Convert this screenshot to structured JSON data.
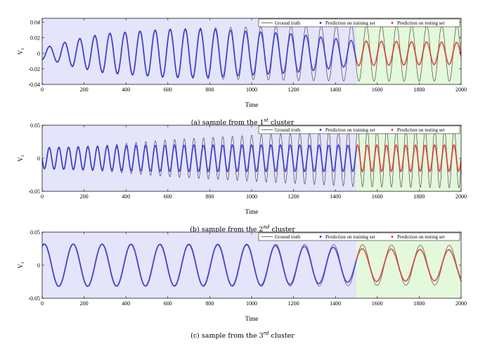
{
  "chart_data": [
    {
      "type": "line",
      "caption": "(a) sample from the 1",
      "caption_sup": "st",
      "caption_end": " cluster",
      "xlabel": "Time",
      "ylabel": "V",
      "ylabel_sub": "1",
      "xlim": [
        0,
        2000
      ],
      "ylim": [
        -0.04,
        0.045
      ],
      "xticks": [
        "0",
        "200",
        "400",
        "600",
        "800",
        "1000",
        "1200",
        "1400",
        "1600",
        "1800",
        "2000"
      ],
      "yticks": [
        "-0.04",
        "-0.02",
        "0",
        "0.02",
        "0.04"
      ],
      "ytick_values": [
        -0.04,
        -0.02,
        0,
        0.02,
        0.04
      ],
      "train_region": [
        0,
        1500
      ],
      "test_region": [
        1500,
        2000
      ],
      "legend": [
        "Ground truth",
        "Prediction on training set",
        "Prediction on testing set"
      ],
      "legend_position": "top-right",
      "colors": {
        "ground_truth": "#333333",
        "train": "#1f1fd6",
        "test": "#e02020",
        "train_bg": "#e4e4fa",
        "test_bg": "#e4f8dc"
      },
      "signal": {
        "period": 72,
        "phase_deg": -90,
        "gt_amplitude": [
          [
            0,
            0.008
          ],
          [
            40,
            0.009
          ],
          [
            150,
            0.018
          ],
          [
            300,
            0.026
          ],
          [
            600,
            0.031
          ],
          [
            800,
            0.033
          ],
          [
            1000,
            0.034
          ],
          [
            1200,
            0.035
          ],
          [
            1500,
            0.036
          ],
          [
            2000,
            0.036
          ]
        ],
        "pred_amplitude": [
          [
            0,
            0.008
          ],
          [
            40,
            0.009
          ],
          [
            150,
            0.017
          ],
          [
            300,
            0.025
          ],
          [
            600,
            0.031
          ],
          [
            800,
            0.031
          ],
          [
            1000,
            0.028
          ],
          [
            1200,
            0.025
          ],
          [
            1500,
            0.016
          ],
          [
            2000,
            0.014
          ]
        ]
      }
    },
    {
      "type": "line",
      "caption": "(b) sample from the 2",
      "caption_sup": "nd",
      "caption_end": " cluster",
      "xlabel": "Time",
      "ylabel": "V",
      "ylabel_sub": "1",
      "xlim": [
        0,
        2000
      ],
      "ylim": [
        -0.05,
        0.05
      ],
      "xticks": [
        "0",
        "200",
        "400",
        "600",
        "800",
        "1000",
        "1200",
        "1400",
        "1600",
        "1800",
        "2000"
      ],
      "yticks": [
        "-0.05",
        "0",
        "0.05"
      ],
      "ytick_values": [
        -0.05,
        0,
        0.05
      ],
      "train_region": [
        0,
        1500
      ],
      "test_region": [
        1500,
        2000
      ],
      "legend": [
        "Ground truth",
        "Prediction on training set",
        "Prediction on testing set"
      ],
      "legend_position": "top-right",
      "colors": {
        "ground_truth": "#333333",
        "train": "#1f1fd6",
        "test": "#e02020",
        "train_bg": "#e4e4fa",
        "test_bg": "#e4f8dc"
      },
      "signal": {
        "period": 46,
        "phase_deg": 180,
        "gt_amplitude": [
          [
            0,
            0.015
          ],
          [
            300,
            0.02
          ],
          [
            600,
            0.028
          ],
          [
            1000,
            0.035
          ],
          [
            1500,
            0.043
          ],
          [
            2000,
            0.045
          ]
        ],
        "pred_amplitude": [
          [
            0,
            0.016
          ],
          [
            300,
            0.018
          ],
          [
            600,
            0.02
          ],
          [
            1000,
            0.02
          ],
          [
            1500,
            0.02
          ],
          [
            2000,
            0.02
          ]
        ]
      }
    },
    {
      "type": "line",
      "caption": "(c) sample from the 3",
      "caption_sup": "rd",
      "caption_end": " cluster",
      "xlabel": "Time",
      "ylabel": "V",
      "ylabel_sub": "1",
      "xlim": [
        0,
        2000
      ],
      "ylim": [
        -0.05,
        0.05
      ],
      "xticks": [
        "0",
        "200",
        "400",
        "600",
        "800",
        "1000",
        "1200",
        "1400",
        "1600",
        "1800",
        "2000"
      ],
      "yticks": [
        "-0.05",
        "0",
        "0.05"
      ],
      "ytick_values": [
        -0.05,
        0,
        0.05
      ],
      "train_region": [
        0,
        1500
      ],
      "test_region": [
        1500,
        2000
      ],
      "legend": [
        "Ground truth",
        "Prediction on training set",
        "Prediction on testing set"
      ],
      "legend_position": "top-right",
      "colors": {
        "ground_truth": "#333333",
        "train": "#1f1fd6",
        "test": "#e02020",
        "train_bg": "#e4e4fa",
        "test_bg": "#e4f8dc"
      },
      "signal": {
        "period": 138,
        "phase_deg": 60,
        "gt_amplitude": [
          [
            0,
            0.032
          ],
          [
            1000,
            0.032
          ],
          [
            1500,
            0.031
          ],
          [
            2000,
            0.03
          ]
        ],
        "pred_amplitude": [
          [
            0,
            0.032
          ],
          [
            1000,
            0.031
          ],
          [
            1400,
            0.027
          ],
          [
            1500,
            0.025
          ],
          [
            2000,
            0.023
          ]
        ]
      }
    }
  ]
}
